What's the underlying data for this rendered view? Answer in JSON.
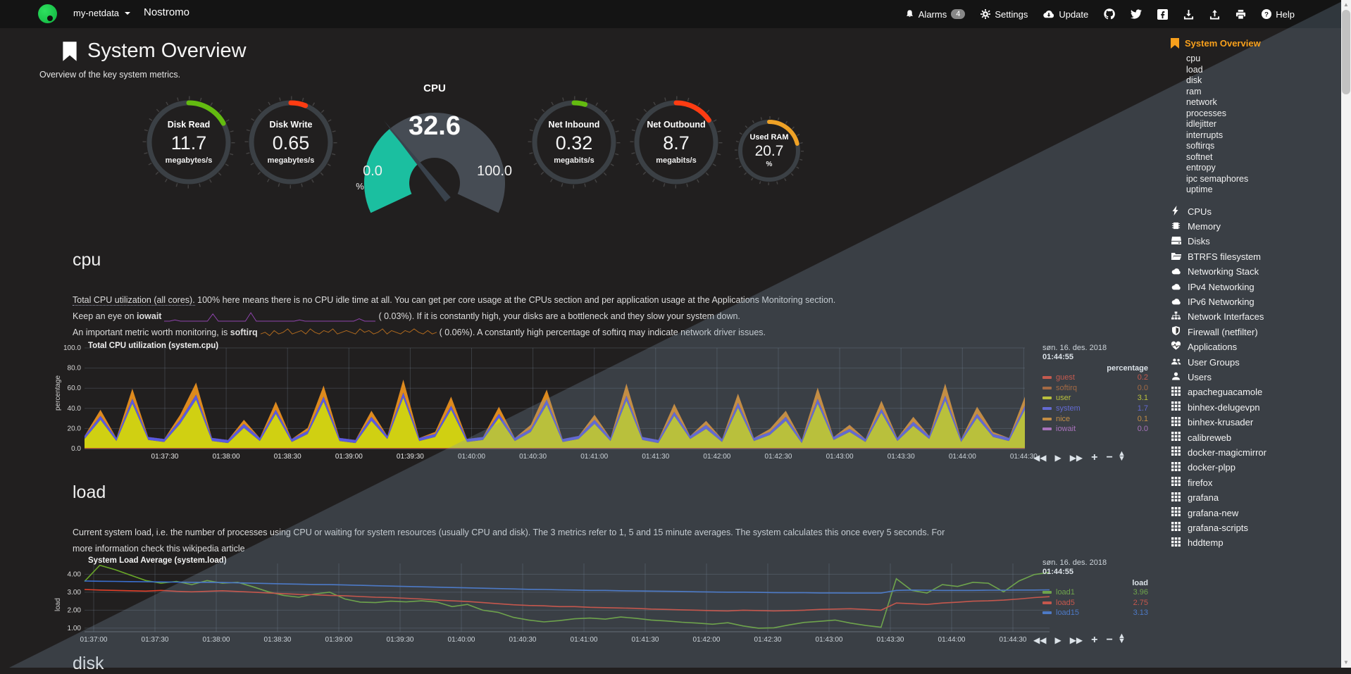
{
  "navbar": {
    "hostname": "my-netdata",
    "title": "Nostromo",
    "alarms_label": "Alarms",
    "alarms_count": "4",
    "settings_label": "Settings",
    "update_label": "Update",
    "help_label": "Help"
  },
  "header": {
    "title": "System Overview",
    "subtitle": "Overview of the key system metrics."
  },
  "gauges": {
    "disk_read": {
      "label": "Disk Read",
      "value": "11.7",
      "unit": "megabytes/s",
      "color": "#63bb10",
      "fraction": 0.17
    },
    "disk_write": {
      "label": "Disk Write",
      "value": "0.65",
      "unit": "megabytes/s",
      "color": "#ff3c12",
      "fraction": 0.06
    },
    "cpu": {
      "label": "CPU",
      "value": "32.6",
      "min": "0.0",
      "max": "100.0",
      "unit": "%",
      "color": "#1bbfa0",
      "percent": 32.6
    },
    "net_inbound": {
      "label": "Net Inbound",
      "value": "0.32",
      "unit": "megabits/s",
      "color": "#63bb10",
      "fraction": 0.045
    },
    "net_outbound": {
      "label": "Net Outbound",
      "value": "8.7",
      "unit": "megabits/s",
      "color": "#ff3c12",
      "fraction": 0.155
    },
    "used_ram": {
      "label": "Used RAM",
      "value": "20.7",
      "unit": "%",
      "color": "#efa226",
      "fraction": 0.21
    }
  },
  "cpu_section": {
    "heading": "cpu",
    "para1_dotted": "Total CPU utilization (all cores).",
    "para1_rest": " 100% here means there is no CPU idle time at all. You can get per core usage at the CPUs section and per application usage at the Applications Monitoring section.",
    "line2_pre": "Keep an eye on ",
    "line2_bold": "iowait",
    "line2_post": "( 0.03%). If it is constantly high, your disks are a bottleneck and they slow your system down.",
    "line3_pre": "An important metric worth monitoring, is ",
    "line3_bold": "softirq",
    "line3_post": "( 0.06%). A constantly high percentage of softirq may indicate network driver issues.",
    "iowait_spark": [
      0,
      0,
      1,
      0,
      0,
      0,
      0,
      0,
      0,
      6,
      0,
      0,
      0,
      0,
      0,
      0,
      7,
      0,
      0,
      0,
      0,
      0,
      0,
      0,
      0,
      1,
      0,
      0,
      0,
      0,
      0,
      0,
      0,
      0,
      0,
      0,
      2,
      0,
      0,
      0
    ],
    "softirq_spark": [
      2,
      3,
      1,
      4,
      2,
      3,
      5,
      2,
      3,
      4,
      2,
      5,
      3,
      2,
      4,
      3,
      5,
      2,
      3,
      4,
      3,
      2,
      5,
      3,
      4,
      2,
      3,
      5,
      2,
      4,
      3,
      2,
      4,
      3,
      5,
      3,
      2,
      4,
      2,
      3
    ]
  },
  "load_section": {
    "heading": "load",
    "para": "Current system load, i.e. the number of processes using CPU or waiting for system resources (usually CPU and disk). The 3 metrics refer to 1, 5 and 15 minute averages. The system calculates this once every 5 seconds. For more information check this wikipedia article"
  },
  "disk_section": {
    "heading": "disk"
  },
  "toolbox": {
    "pan_backward": "◀◀",
    "play": "▶",
    "pan_forward": "▶▶",
    "zoom_in": "+",
    "zoom_out": "−",
    "resize": "▲▼"
  },
  "chart_data": [
    {
      "type": "area",
      "stacked": true,
      "title": "Total CPU utilization (system.cpu)",
      "ylabel": "percentage",
      "ylim": [
        0,
        100
      ],
      "yticks": [
        "100.0",
        "80.0",
        "60.0",
        "40.0",
        "20.0",
        "0.0"
      ],
      "xticks": [
        "01:37:30",
        "01:38:00",
        "01:38:30",
        "01:39:00",
        "01:39:30",
        "01:40:00",
        "01:40:30",
        "01:41:00",
        "01:41:30",
        "01:42:00",
        "01:42:30",
        "01:43:00",
        "01:43:30",
        "01:44:00",
        "01:44:30"
      ],
      "legend_date": "søn. 16. des. 2018",
      "legend_time": "01:44:55",
      "legend_header": "percentage",
      "grid": true,
      "legend_position": "right",
      "series": [
        {
          "name": "guest",
          "color": "#e0442c",
          "value": "0.2",
          "flat": 0.4
        },
        {
          "name": "softirq",
          "color": "#b35a1e",
          "value": "0.0",
          "flat": 0.15
        },
        {
          "name": "user",
          "color": "#d0d012",
          "value": "3.1",
          "values": [
            9,
            28,
            7,
            44,
            8,
            6,
            24,
            48,
            7,
            5,
            20,
            7,
            34,
            6,
            14,
            46,
            7,
            5,
            27,
            9,
            50,
            7,
            11,
            38,
            6,
            8,
            30,
            7,
            16,
            43,
            6,
            9,
            24,
            7,
            47,
            8,
            5,
            32,
            9,
            19,
            6,
            40,
            7,
            13,
            27,
            5,
            44,
            8,
            16,
            6,
            35,
            7,
            22,
            9,
            47,
            6,
            30,
            11,
            7,
            38
          ]
        },
        {
          "name": "system",
          "color": "#5a5ae0",
          "value": "1.7",
          "values": [
            3,
            4,
            3,
            5,
            3,
            3,
            4,
            5,
            3,
            3,
            4,
            3,
            4,
            3,
            3,
            5,
            3,
            3,
            4,
            3,
            5,
            3,
            3,
            4,
            3,
            3,
            4,
            3,
            3,
            5,
            3,
            3,
            4,
            3,
            5,
            3,
            3,
            4,
            3,
            4,
            3,
            5,
            3,
            3,
            4,
            3,
            5,
            3,
            3,
            3,
            4,
            3,
            4,
            3,
            5,
            3,
            4,
            3,
            3,
            4
          ]
        },
        {
          "name": "nice",
          "color": "#dd8a1d",
          "value": "0.1",
          "values": [
            0,
            6,
            0,
            10,
            0,
            0,
            5,
            12,
            0,
            0,
            4,
            0,
            8,
            0,
            3,
            11,
            0,
            0,
            6,
            0,
            13,
            0,
            2,
            9,
            0,
            0,
            7,
            0,
            4,
            10,
            0,
            0,
            5,
            0,
            12,
            0,
            0,
            8,
            0,
            4,
            0,
            9,
            0,
            3,
            6,
            0,
            11,
            0,
            4,
            0,
            8,
            0,
            5,
            0,
            12,
            0,
            7,
            2,
            0,
            9
          ]
        },
        {
          "name": "iowait",
          "color": "#b865c0",
          "value": "0.0",
          "flat": 0.1
        }
      ],
      "legend_order": [
        "guest",
        "softirq",
        "user",
        "system",
        "nice",
        "iowait"
      ]
    },
    {
      "type": "line",
      "stacked": false,
      "title": "System Load Average (system.load)",
      "ylabel": "load",
      "ylim": [
        0.8,
        4.6
      ],
      "yticks": [
        "4.00",
        "3.00",
        "2.00",
        "1.00"
      ],
      "ytick_vals": [
        4,
        3,
        2,
        1
      ],
      "xticks": [
        "01:37:00",
        "01:37:30",
        "01:38:00",
        "01:38:30",
        "01:39:00",
        "01:39:30",
        "01:40:00",
        "01:40:30",
        "01:41:00",
        "01:41:30",
        "01:42:00",
        "01:42:30",
        "01:43:00",
        "01:43:30",
        "01:44:00",
        "01:44:30"
      ],
      "legend_date": "søn. 16. des. 2018",
      "legend_time": "01:44:55",
      "legend_header": "load",
      "grid": true,
      "legend_position": "right",
      "series": [
        {
          "name": "load1",
          "color": "#69a828",
          "value": "3.96",
          "values": [
            3.6,
            4.5,
            4.25,
            3.95,
            3.65,
            3.5,
            3.6,
            3.42,
            3.65,
            3.5,
            3.55,
            3.3,
            3.02,
            2.82,
            2.72,
            2.9,
            3.0,
            2.62,
            2.45,
            2.42,
            2.5,
            2.46,
            2.52,
            2.45,
            2.2,
            2.32,
            2.0,
            1.88,
            1.6,
            1.45,
            1.35,
            1.42,
            1.52,
            1.56,
            1.5,
            1.62,
            1.55,
            1.45,
            1.4,
            1.33,
            1.28,
            1.22,
            1.3,
            1.12,
            1.0,
            1.02,
            1.18,
            1.32,
            1.38,
            1.45,
            1.28,
            1.15,
            1.05,
            3.75,
            3.1,
            2.95,
            3.42,
            3.32,
            3.55,
            3.5,
            3.02,
            3.62,
            3.98,
            4.1
          ]
        },
        {
          "name": "load5",
          "color": "#e0402a",
          "value": "2.75",
          "values": [
            3.15,
            3.12,
            3.1,
            3.08,
            3.06,
            3.1,
            3.05,
            3.02,
            3.05,
            3.08,
            3.04,
            3.0,
            2.96,
            2.92,
            2.88,
            2.86,
            2.82,
            2.8,
            2.76,
            2.72,
            2.7,
            2.66,
            2.62,
            2.56,
            2.52,
            2.48,
            2.42,
            2.36,
            2.3,
            2.26,
            2.24,
            2.2,
            2.2,
            2.16,
            2.14,
            2.12,
            2.1,
            2.06,
            2.04,
            2.02,
            2.0,
            1.97,
            1.96,
            2.0,
            1.98,
            1.96,
            1.97,
            2.0,
            2.04,
            2.06,
            2.08,
            2.04,
            2.0,
            2.4,
            2.36,
            2.32,
            2.4,
            2.44,
            2.5,
            2.52,
            2.56,
            2.62,
            2.7,
            2.75
          ]
        },
        {
          "name": "load15",
          "color": "#3b6fd0",
          "value": "3.13",
          "values": [
            3.62,
            3.61,
            3.6,
            3.59,
            3.58,
            3.57,
            3.56,
            3.55,
            3.55,
            3.54,
            3.52,
            3.5,
            3.48,
            3.46,
            3.45,
            3.43,
            3.42,
            3.4,
            3.38,
            3.36,
            3.34,
            3.32,
            3.3,
            3.28,
            3.26,
            3.24,
            3.22,
            3.2,
            3.18,
            3.16,
            3.15,
            3.13,
            3.12,
            3.1,
            3.1,
            3.08,
            3.07,
            3.06,
            3.05,
            3.04,
            3.02,
            3.01,
            3.0,
            3.0,
            2.99,
            2.98,
            2.97,
            2.97,
            2.96,
            2.96,
            2.95,
            2.95,
            2.95,
            3.1,
            3.12,
            3.11,
            3.1,
            3.1,
            3.1,
            3.11,
            3.11,
            3.12,
            3.12,
            3.13
          ]
        }
      ],
      "legend_order": [
        "load1",
        "load5",
        "load15"
      ]
    }
  ],
  "sidebar": {
    "active_label": "System Overview",
    "sub_items": [
      "cpu",
      "load",
      "disk",
      "ram",
      "network",
      "processes",
      "idlejitter",
      "interrupts",
      "softirqs",
      "softnet",
      "entropy",
      "ipc semaphores",
      "uptime"
    ],
    "sections": [
      {
        "icon": "bolt",
        "label": "CPUs"
      },
      {
        "icon": "microchip",
        "label": "Memory"
      },
      {
        "icon": "hdd",
        "label": "Disks"
      },
      {
        "icon": "folder",
        "label": "BTRFS filesystem"
      },
      {
        "icon": "cloud",
        "label": "Networking Stack"
      },
      {
        "icon": "cloud",
        "label": "IPv4 Networking"
      },
      {
        "icon": "cloud",
        "label": "IPv6 Networking"
      },
      {
        "icon": "sitemap",
        "label": "Network Interfaces"
      },
      {
        "icon": "shield",
        "label": "Firewall (netfilter)"
      },
      {
        "icon": "heartbeat",
        "label": "Applications"
      },
      {
        "icon": "users",
        "label": "User Groups"
      },
      {
        "icon": "user",
        "label": "Users"
      },
      {
        "icon": "grid",
        "label": "apacheguacamole"
      },
      {
        "icon": "grid",
        "label": "binhex-delugevpn"
      },
      {
        "icon": "grid",
        "label": "binhex-krusader"
      },
      {
        "icon": "grid",
        "label": "calibreweb"
      },
      {
        "icon": "grid",
        "label": "docker-magicmirror"
      },
      {
        "icon": "grid",
        "label": "docker-plpp"
      },
      {
        "icon": "grid",
        "label": "firefox"
      },
      {
        "icon": "grid",
        "label": "grafana"
      },
      {
        "icon": "grid",
        "label": "grafana-new"
      },
      {
        "icon": "grid",
        "label": "grafana-scripts"
      },
      {
        "icon": "grid",
        "label": "hddtemp"
      }
    ]
  }
}
